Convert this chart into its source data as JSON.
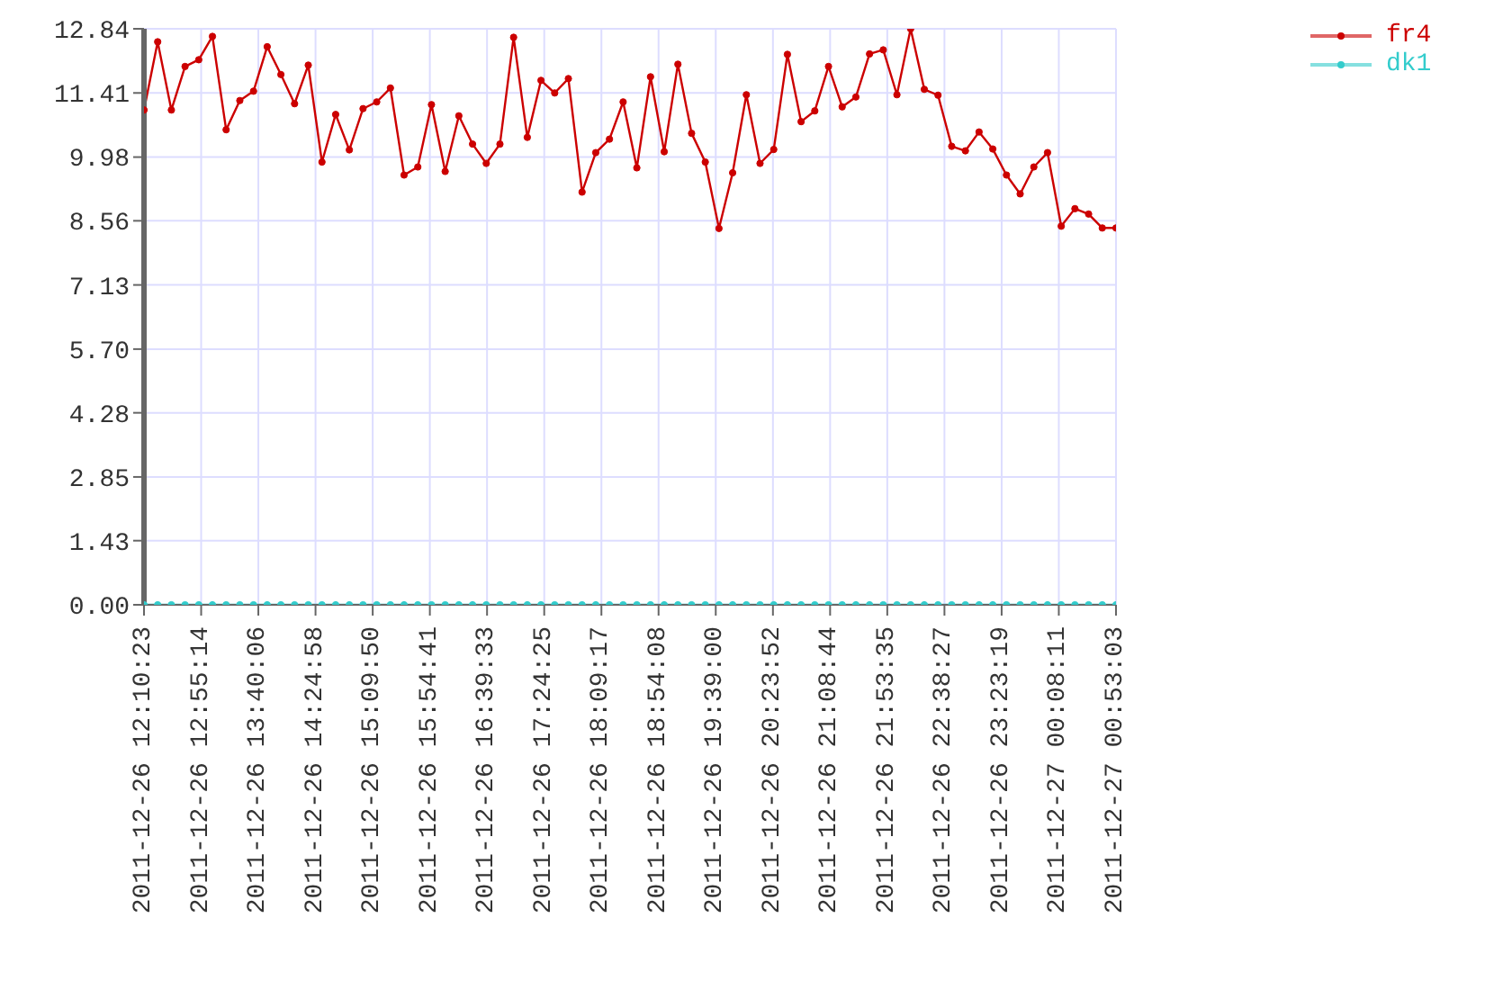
{
  "chart_data": {
    "type": "line",
    "x": [
      "2011-12-26T12:10:23",
      "2011-12-26T12:21:07",
      "2011-12-26T12:31:52",
      "2011-12-26T12:42:36",
      "2011-12-26T12:53:21",
      "2011-12-26T13:04:05",
      "2011-12-26T13:14:50",
      "2011-12-26T13:25:34",
      "2011-12-26T13:36:19",
      "2011-12-26T13:47:03",
      "2011-12-26T13:57:48",
      "2011-12-26T14:08:32",
      "2011-12-26T14:19:17",
      "2011-12-26T14:30:01",
      "2011-12-26T14:40:46",
      "2011-12-26T14:51:30",
      "2011-12-26T15:02:15",
      "2011-12-26T15:12:59",
      "2011-12-26T15:23:44",
      "2011-12-26T15:34:28",
      "2011-12-26T15:45:13",
      "2011-12-26T15:55:57",
      "2011-12-26T16:06:42",
      "2011-12-26T16:17:26",
      "2011-12-26T16:28:11",
      "2011-12-26T16:38:55",
      "2011-12-26T16:49:40",
      "2011-12-26T17:00:24",
      "2011-12-26T17:11:09",
      "2011-12-26T17:21:53",
      "2011-12-26T17:32:38",
      "2011-12-26T17:43:22",
      "2011-12-26T17:54:07",
      "2011-12-26T18:04:51",
      "2011-12-26T18:15:36",
      "2011-12-26T18:26:20",
      "2011-12-26T18:37:05",
      "2011-12-26T18:47:49",
      "2011-12-26T18:58:34",
      "2011-12-26T19:09:18",
      "2011-12-26T19:20:03",
      "2011-12-26T19:30:47",
      "2011-12-26T19:41:32",
      "2011-12-26T19:52:16",
      "2011-12-26T20:03:01",
      "2011-12-26T20:13:45",
      "2011-12-26T20:24:30",
      "2011-12-26T20:35:14",
      "2011-12-26T20:45:59",
      "2011-12-26T20:56:43",
      "2011-12-26T21:07:28",
      "2011-12-26T21:18:12",
      "2011-12-26T21:28:57",
      "2011-12-26T21:39:41",
      "2011-12-26T21:50:26",
      "2011-12-26T22:01:10",
      "2011-12-26T22:11:55",
      "2011-12-26T22:22:39",
      "2011-12-26T22:33:24",
      "2011-12-26T22:44:08",
      "2011-12-26T22:54:53",
      "2011-12-26T23:05:37",
      "2011-12-26T23:16:22",
      "2011-12-26T23:27:06",
      "2011-12-26T23:37:51",
      "2011-12-26T23:48:35",
      "2011-12-26T23:59:20",
      "2011-12-27T00:10:04",
      "2011-12-27T00:20:49",
      "2011-12-27T00:31:33",
      "2011-12-27T00:42:18",
      "2011-12-27T00:53:03"
    ],
    "series": [
      {
        "name": "fr4",
        "color": "#cc0000",
        "values": [
          11.03,
          12.55,
          11.03,
          12.0,
          12.15,
          12.67,
          10.59,
          11.24,
          11.45,
          12.44,
          11.82,
          11.17,
          12.03,
          9.87,
          10.93,
          10.14,
          11.06,
          11.21,
          11.52,
          9.58,
          9.76,
          11.15,
          9.66,
          10.9,
          10.27,
          9.84,
          10.27,
          12.65,
          10.42,
          11.69,
          11.41,
          11.73,
          9.2,
          10.08,
          10.38,
          11.21,
          9.74,
          11.77,
          10.1,
          12.05,
          10.51,
          9.87,
          8.39,
          9.63,
          11.37,
          9.84,
          10.15,
          12.27,
          10.77,
          11.01,
          12.0,
          11.1,
          11.32,
          12.28,
          12.37,
          11.37,
          12.84,
          11.49,
          11.36,
          10.22,
          10.12,
          10.54,
          10.16,
          9.58,
          9.16,
          9.76,
          10.08,
          8.44,
          8.83,
          8.71,
          8.4,
          8.4
        ]
      },
      {
        "name": "dk1",
        "color": "#33cccc",
        "values": [
          0,
          0,
          0,
          0,
          0,
          0,
          0,
          0,
          0,
          0,
          0,
          0,
          0,
          0,
          0,
          0,
          0,
          0,
          0,
          0,
          0,
          0,
          0,
          0,
          0,
          0,
          0,
          0,
          0,
          0,
          0,
          0,
          0,
          0,
          0,
          0,
          0,
          0,
          0,
          0,
          0,
          0,
          0,
          0,
          0,
          0,
          0,
          0,
          0,
          0,
          0,
          0,
          0,
          0,
          0,
          0,
          0,
          0,
          0,
          0,
          0,
          0,
          0,
          0,
          0,
          0,
          0,
          0,
          0,
          0,
          0,
          0
        ]
      }
    ],
    "xlim": [
      "2011-12-26T12:10:23",
      "2011-12-27T00:53:03"
    ],
    "xticks": [
      {
        "value": "2011-12-26T12:10:23",
        "label": "2011-12-26 12:10:23"
      },
      {
        "value": "2011-12-26T12:55:14",
        "label": "2011-12-26 12:55:14"
      },
      {
        "value": "2011-12-26T13:40:06",
        "label": "2011-12-26 13:40:06"
      },
      {
        "value": "2011-12-26T14:24:58",
        "label": "2011-12-26 14:24:58"
      },
      {
        "value": "2011-12-26T15:09:50",
        "label": "2011-12-26 15:09:50"
      },
      {
        "value": "2011-12-26T15:54:41",
        "label": "2011-12-26 15:54:41"
      },
      {
        "value": "2011-12-26T16:39:33",
        "label": "2011-12-26 16:39:33"
      },
      {
        "value": "2011-12-26T17:24:25",
        "label": "2011-12-26 17:24:25"
      },
      {
        "value": "2011-12-26T18:09:17",
        "label": "2011-12-26 18:09:17"
      },
      {
        "value": "2011-12-26T18:54:08",
        "label": "2011-12-26 18:54:08"
      },
      {
        "value": "2011-12-26T19:39:00",
        "label": "2011-12-26 19:39:00"
      },
      {
        "value": "2011-12-26T20:23:52",
        "label": "2011-12-26 20:23:52"
      },
      {
        "value": "2011-12-26T21:08:44",
        "label": "2011-12-26 21:08:44"
      },
      {
        "value": "2011-12-26T21:53:35",
        "label": "2011-12-26 21:53:35"
      },
      {
        "value": "2011-12-26T22:38:27",
        "label": "2011-12-26 22:38:27"
      },
      {
        "value": "2011-12-26T23:23:19",
        "label": "2011-12-26 23:23:19"
      },
      {
        "value": "2011-12-27T00:08:11",
        "label": "2011-12-27 00:08:11"
      },
      {
        "value": "2011-12-27T00:53:03",
        "label": "2011-12-27 00:53:03"
      }
    ],
    "ylim": [
      0,
      12.84
    ],
    "yticks": [
      {
        "value": 0,
        "label": "0.00"
      },
      1.43,
      2.85,
      4.28,
      {
        "value": 5.7,
        "label": "5.70"
      },
      7.13,
      8.56,
      9.98,
      11.41,
      12.84
    ],
    "grid": true,
    "legend": "top right",
    "marker": "circle",
    "line_style": "solid"
  }
}
